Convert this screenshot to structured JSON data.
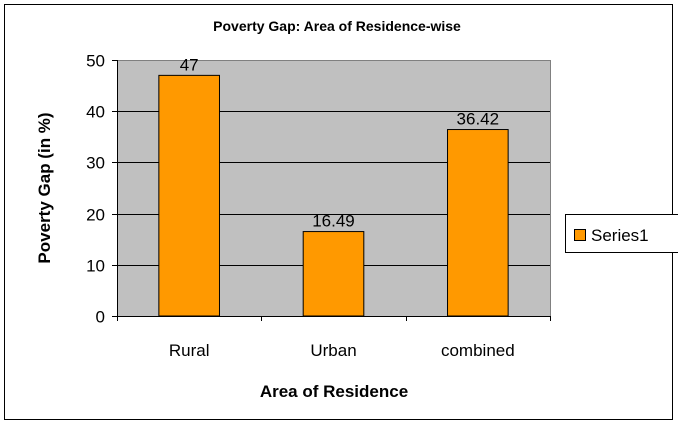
{
  "chart_data": {
    "type": "bar",
    "title": "Poverty Gap: Area of Residence-wise",
    "xlabel": "Area of Residence",
    "ylabel": "Poverty Gap (in %)",
    "categories": [
      "Rural",
      "Urban",
      "combined"
    ],
    "series": [
      {
        "name": "Series1",
        "values": [
          47,
          16.49,
          36.42
        ],
        "data_labels": [
          "47",
          "16.49",
          "36.42"
        ]
      }
    ],
    "ylim": [
      0,
      50
    ],
    "y_ticks": [
      0,
      10,
      20,
      30,
      40,
      50
    ],
    "grid": true,
    "legend_position": "right",
    "colors": {
      "bar": "#FF9900",
      "bar_border": "#000000",
      "plot_background": "#C0C0C0",
      "gridline": "#000000"
    }
  }
}
